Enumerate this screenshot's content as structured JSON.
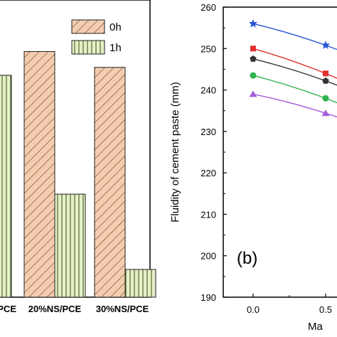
{
  "chart_data": [
    {
      "type": "bar",
      "panel": "a",
      "categories": [
        "PCE",
        "20%NS/PCE",
        "30%NS/PCE"
      ],
      "category_labels_shown": [
        "PCE",
        "20%NS/PCE",
        "30%NS/PCE"
      ],
      "series": [
        {
          "name": "0h",
          "values": [
            null,
            252,
            248
          ]
        },
        {
          "name": "1h",
          "values": [
            246,
            216,
            197
          ]
        }
      ],
      "ylim": [
        190,
        265
      ],
      "legend": "top-right",
      "legend_labels": [
        "0h",
        "1h"
      ],
      "fill_patterns": {
        "0h": "diagonal-hatch",
        "1h": "vertical-lines"
      },
      "colors": {
        "0h_fill": "#f2cdb0",
        "0h_hatch": "#7a3a1c",
        "1h_fill": "#e4f0c8",
        "1h_hatch": "#4b5e1c"
      }
    },
    {
      "type": "line",
      "panel": "b",
      "panel_label": "(b)",
      "ylabel": "Fluidity of cement paste (mm)",
      "xlabel_fragment": "Ma",
      "y_ticks": [
        190,
        200,
        210,
        220,
        230,
        240,
        250,
        260
      ],
      "x_ticks": [
        "0.0",
        "0.5"
      ],
      "ylim": [
        190,
        260
      ],
      "x": [
        0.0,
        0.5
      ],
      "series": [
        {
          "marker": "star",
          "color": "#2a55d6",
          "values": [
            256,
            250.8
          ]
        },
        {
          "marker": "square",
          "color": "#e03030",
          "values": [
            250,
            244
          ]
        },
        {
          "marker": "pentagon",
          "color": "#333333",
          "values": [
            247.5,
            242.2
          ]
        },
        {
          "marker": "circle",
          "color": "#2fb24f",
          "values": [
            243.5,
            238
          ]
        },
        {
          "marker": "triangle",
          "color": "#a65ed9",
          "values": [
            239,
            234.4
          ]
        }
      ]
    }
  ]
}
